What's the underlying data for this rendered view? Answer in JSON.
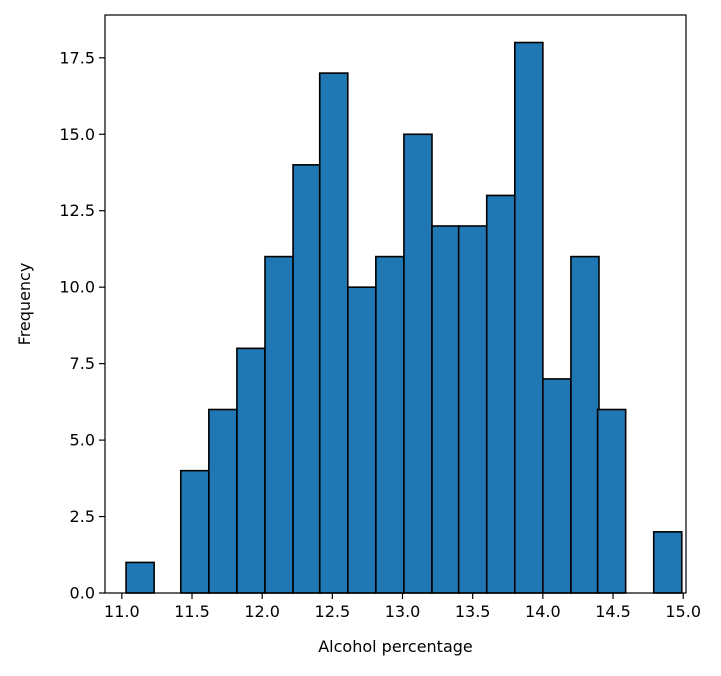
{
  "chart_data": {
    "type": "bar",
    "title": "",
    "xlabel": "Alcohol percentage",
    "ylabel": "Frequency",
    "xlim": [
      10.88,
      15.02
    ],
    "ylim": [
      0,
      18.9
    ],
    "grid": false,
    "legend": "none",
    "bar_color": "#1f77b4",
    "edge_color": "#000000",
    "x_ticks": [
      {
        "value": 11.0,
        "label": "11.0"
      },
      {
        "value": 11.5,
        "label": "11.5"
      },
      {
        "value": 12.0,
        "label": "12.0"
      },
      {
        "value": 12.5,
        "label": "12.5"
      },
      {
        "value": 13.0,
        "label": "13.0"
      },
      {
        "value": 13.5,
        "label": "13.5"
      },
      {
        "value": 14.0,
        "label": "14.0"
      },
      {
        "value": 14.5,
        "label": "14.5"
      },
      {
        "value": 15.0,
        "label": "15.0"
      }
    ],
    "y_ticks": [
      {
        "value": 0.0,
        "label": "0.0"
      },
      {
        "value": 2.5,
        "label": "2.5"
      },
      {
        "value": 5.0,
        "label": "5.0"
      },
      {
        "value": 7.5,
        "label": "7.5"
      },
      {
        "value": 10.0,
        "label": "10.0"
      },
      {
        "value": 12.5,
        "label": "12.5"
      },
      {
        "value": 15.0,
        "label": "15.0"
      },
      {
        "value": 17.5,
        "label": "17.5"
      }
    ],
    "bins": [
      11.03,
      11.23,
      11.42,
      11.62,
      11.82,
      12.02,
      12.22,
      12.41,
      12.61,
      12.81,
      13.01,
      13.21,
      13.4,
      13.6,
      13.8,
      14.0,
      14.2,
      14.39,
      14.59,
      14.79
    ],
    "values": [
      1,
      0,
      4,
      6,
      8,
      11,
      14,
      17,
      10,
      11,
      15,
      12,
      12,
      13,
      18,
      7,
      11,
      6,
      0,
      2
    ]
  }
}
